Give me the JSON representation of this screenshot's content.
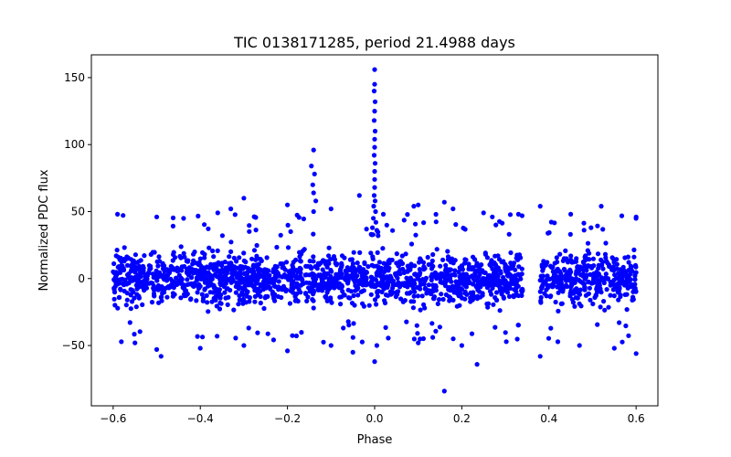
{
  "chart_data": {
    "type": "scatter",
    "title": "TIC 0138171285, period 21.4988 days",
    "xlabel": "Phase",
    "ylabel": "Normalized PDC flux",
    "xlim": [
      -0.65,
      0.65
    ],
    "ylim": [
      -95,
      167
    ],
    "x_ticks": [
      -0.6,
      -0.4,
      -0.2,
      0.0,
      0.2,
      0.4,
      0.6
    ],
    "x_tick_labels": [
      "−0.6",
      "−0.4",
      "−0.2",
      "0.0",
      "0.2",
      "0.4",
      "0.6"
    ],
    "y_ticks": [
      -50,
      0,
      50,
      100,
      150
    ],
    "y_tick_labels": [
      "−50",
      "0",
      "50",
      "100",
      "150"
    ],
    "grid": false,
    "marker_color": "#0000ff",
    "series": [
      {
        "name": "PDC flux",
        "description": "dense band between about -30 and +30 across phase -0.6..0.34 and 0.38..0.6 with a gap 0.34-0.38; transit-like spike near phase 0.0",
        "band_ranges": [
          [
            -0.6,
            0.34
          ],
          [
            0.38,
            0.6
          ]
        ],
        "band_half_width": 28,
        "points": [
          [
            0.0,
            156
          ],
          [
            0.0,
            145
          ],
          [
            -0.001,
            140
          ],
          [
            0.001,
            132
          ],
          [
            0.0,
            125
          ],
          [
            -0.001,
            118
          ],
          [
            0.001,
            110
          ],
          [
            0.0,
            104
          ],
          [
            0.0,
            98
          ],
          [
            -0.001,
            92
          ],
          [
            0.001,
            86
          ],
          [
            0.0,
            80
          ],
          [
            0.0,
            74
          ],
          [
            0.0,
            68
          ],
          [
            -0.001,
            62
          ],
          [
            0.001,
            58
          ],
          [
            -0.002,
            54
          ],
          [
            0.002,
            50
          ],
          [
            -0.003,
            45
          ],
          [
            0.003,
            42
          ],
          [
            -0.005,
            38
          ],
          [
            0.005,
            36
          ],
          [
            -0.008,
            33
          ],
          [
            0.008,
            32
          ],
          [
            -0.14,
            96
          ],
          [
            -0.145,
            84
          ],
          [
            -0.138,
            78
          ],
          [
            -0.142,
            70
          ],
          [
            -0.14,
            64
          ],
          [
            -0.135,
            58
          ],
          [
            -0.14,
            50
          ],
          [
            -0.3,
            60
          ],
          [
            -0.33,
            52
          ],
          [
            -0.36,
            49
          ],
          [
            -0.2,
            55
          ],
          [
            -0.1,
            52
          ],
          [
            -0.035,
            62
          ],
          [
            0.02,
            48
          ],
          [
            0.1,
            55
          ],
          [
            0.09,
            54
          ],
          [
            0.16,
            57
          ],
          [
            0.18,
            52
          ],
          [
            0.38,
            54
          ],
          [
            0.52,
            54
          ],
          [
            -0.59,
            48
          ],
          [
            0.25,
            49
          ],
          [
            0.33,
            48
          ],
          [
            0.6,
            46
          ],
          [
            0.45,
            48
          ],
          [
            -0.5,
            46
          ],
          [
            0.27,
            46
          ],
          [
            0.16,
            -84
          ],
          [
            0.235,
            -64
          ],
          [
            -0.49,
            -58
          ],
          [
            -0.5,
            -53
          ],
          [
            0.0,
            -62
          ],
          [
            0.005,
            -50
          ],
          [
            0.38,
            -58
          ],
          [
            0.6,
            -56
          ],
          [
            0.55,
            -52
          ],
          [
            -0.4,
            -52
          ],
          [
            -0.2,
            -54
          ],
          [
            -0.05,
            -55
          ],
          [
            0.2,
            -50
          ],
          [
            -0.1,
            -50
          ],
          [
            0.47,
            -50
          ],
          [
            -0.55,
            -48
          ],
          [
            0.1,
            -48
          ],
          [
            -0.3,
            -50
          ]
        ]
      }
    ]
  }
}
